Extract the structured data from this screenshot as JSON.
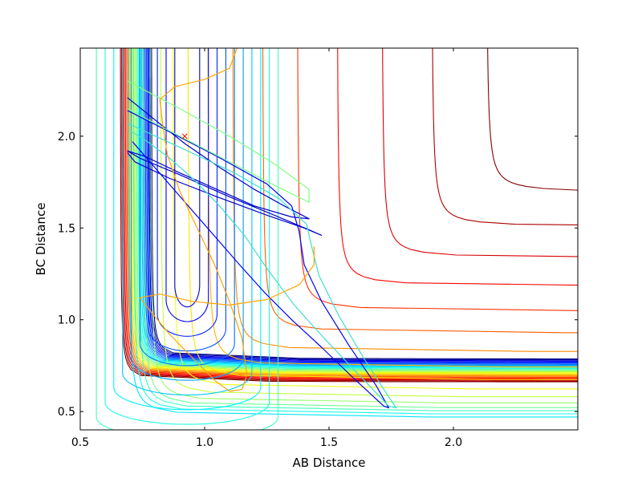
{
  "chart_data": {
    "type": "contour",
    "title": "",
    "xlabel": "AB Distance",
    "ylabel": "BC Distance",
    "xlim": [
      0.5,
      2.5
    ],
    "ylim": [
      0.4,
      2.48
    ],
    "xticks": [
      0.5,
      1.0,
      1.5,
      2.0
    ],
    "yticks": [
      0.5,
      1.0,
      1.5,
      2.0
    ],
    "xtick_labels": [
      "0.5",
      "1.0",
      "1.5",
      "2.0"
    ],
    "ytick_labels": [
      "0.5",
      "1.0",
      "1.5",
      "2.0"
    ],
    "colormap": "jet",
    "grid": false,
    "legend": "none",
    "potential_surface": {
      "levels": 26,
      "mirrored_contours": true,
      "asymptote_start": 0.66,
      "asymptote_step": 0.005,
      "valley_offsets": [
        0.03,
        0.05,
        0.07,
        0.09,
        0.12,
        0.16,
        0.21,
        0.27,
        0.35,
        0.45,
        0.57,
        0.71,
        0.87,
        1.05,
        1.25,
        1.47
      ],
      "inner_levels": 10,
      "valley_floor": 0.64
    },
    "trajectories": [
      {
        "name": "",
        "color": "#0000cd",
        "points": [
          [
            0.69,
            2.21
          ],
          [
            0.8,
            2.09
          ],
          [
            0.92,
            1.96
          ],
          [
            1.06,
            1.83
          ],
          [
            1.2,
            1.71
          ],
          [
            1.32,
            1.62
          ],
          [
            1.42,
            1.55
          ],
          [
            1.35,
            1.56
          ],
          [
            1.2,
            1.62
          ],
          [
            1.05,
            1.71
          ],
          [
            0.9,
            1.8
          ],
          [
            0.76,
            1.89
          ],
          [
            0.69,
            1.92
          ],
          [
            0.74,
            1.88
          ],
          [
            0.9,
            1.79
          ],
          [
            1.1,
            1.67
          ],
          [
            1.28,
            1.57
          ],
          [
            1.42,
            1.49
          ],
          [
            1.47,
            1.46
          ],
          [
            1.4,
            1.5
          ],
          [
            1.25,
            1.57
          ],
          [
            1.05,
            1.67
          ],
          [
            0.86,
            1.77
          ],
          [
            0.72,
            1.86
          ],
          [
            0.69,
            1.91
          ]
        ]
      },
      {
        "name": "",
        "color": "#0000ff",
        "points": [
          [
            0.69,
            2.14
          ],
          [
            0.85,
            2.03
          ],
          [
            1.05,
            1.89
          ],
          [
            1.25,
            1.74
          ],
          [
            1.35,
            1.62
          ],
          [
            1.38,
            1.48
          ],
          [
            1.4,
            1.3
          ],
          [
            1.47,
            1.1
          ],
          [
            1.58,
            0.86
          ],
          [
            1.69,
            0.64
          ],
          [
            1.74,
            0.52
          ],
          [
            1.72,
            0.53
          ],
          [
            1.6,
            0.68
          ],
          [
            1.47,
            0.85
          ],
          [
            1.35,
            1.0
          ],
          [
            1.24,
            1.15
          ],
          [
            1.14,
            1.3
          ],
          [
            1.05,
            1.44
          ],
          [
            0.96,
            1.58
          ],
          [
            0.87,
            1.72
          ],
          [
            0.78,
            1.86
          ],
          [
            0.71,
            1.97
          ]
        ]
      },
      {
        "name": "",
        "color": "#40e0d0",
        "points": [
          [
            0.69,
            2.07
          ],
          [
            0.9,
            1.94
          ],
          [
            1.12,
            1.8
          ],
          [
            1.3,
            1.66
          ],
          [
            1.41,
            1.52
          ],
          [
            1.43,
            1.4
          ],
          [
            1.46,
            1.24
          ],
          [
            1.54,
            1.02
          ],
          [
            1.64,
            0.79
          ],
          [
            1.73,
            0.6
          ],
          [
            1.77,
            0.52
          ],
          [
            1.74,
            0.53
          ],
          [
            1.62,
            0.7
          ],
          [
            1.48,
            0.9
          ],
          [
            1.36,
            1.08
          ],
          [
            1.25,
            1.28
          ],
          [
            1.16,
            1.46
          ],
          [
            1.06,
            1.62
          ],
          [
            0.96,
            1.76
          ],
          [
            0.86,
            1.88
          ],
          [
            0.76,
            1.98
          ],
          [
            0.7,
            2.03
          ]
        ]
      },
      {
        "name": "",
        "color": "#7fff7f",
        "points": [
          [
            0.69,
            2.3
          ],
          [
            0.9,
            2.15
          ],
          [
            1.1,
            2.0
          ],
          [
            1.28,
            1.85
          ],
          [
            1.42,
            1.71
          ],
          [
            1.42,
            1.64
          ],
          [
            1.3,
            1.72
          ],
          [
            1.1,
            1.86
          ],
          [
            0.9,
            2.0
          ],
          [
            0.73,
            2.12
          ],
          [
            0.69,
            2.15
          ]
        ]
      },
      {
        "name": "",
        "color": "#ffa500",
        "points": [
          [
            1.13,
            2.48
          ],
          [
            1.1,
            2.37
          ],
          [
            1.0,
            2.31
          ],
          [
            0.88,
            2.27
          ],
          [
            0.82,
            2.2
          ],
          [
            0.83,
            2.08
          ],
          [
            0.85,
            1.9
          ],
          [
            0.9,
            1.7
          ],
          [
            0.97,
            1.5
          ],
          [
            1.04,
            1.3
          ],
          [
            1.1,
            1.1
          ],
          [
            1.15,
            0.9
          ],
          [
            1.17,
            0.7
          ],
          [
            1.15,
            0.62
          ],
          [
            1.1,
            0.61
          ],
          [
            1.04,
            0.67
          ],
          [
            0.96,
            0.78
          ],
          [
            0.86,
            0.92
          ],
          [
            0.78,
            1.05
          ],
          [
            0.74,
            1.12
          ],
          [
            0.82,
            1.14
          ],
          [
            0.95,
            1.1
          ],
          [
            1.1,
            1.08
          ],
          [
            1.25,
            1.11
          ],
          [
            1.38,
            1.19
          ],
          [
            1.44,
            1.3
          ],
          [
            1.44,
            1.4
          ]
        ]
      }
    ],
    "markers": [
      {
        "x": 0.92,
        "y": 2.0,
        "symbol": "x",
        "color": "#ff0000"
      }
    ]
  }
}
